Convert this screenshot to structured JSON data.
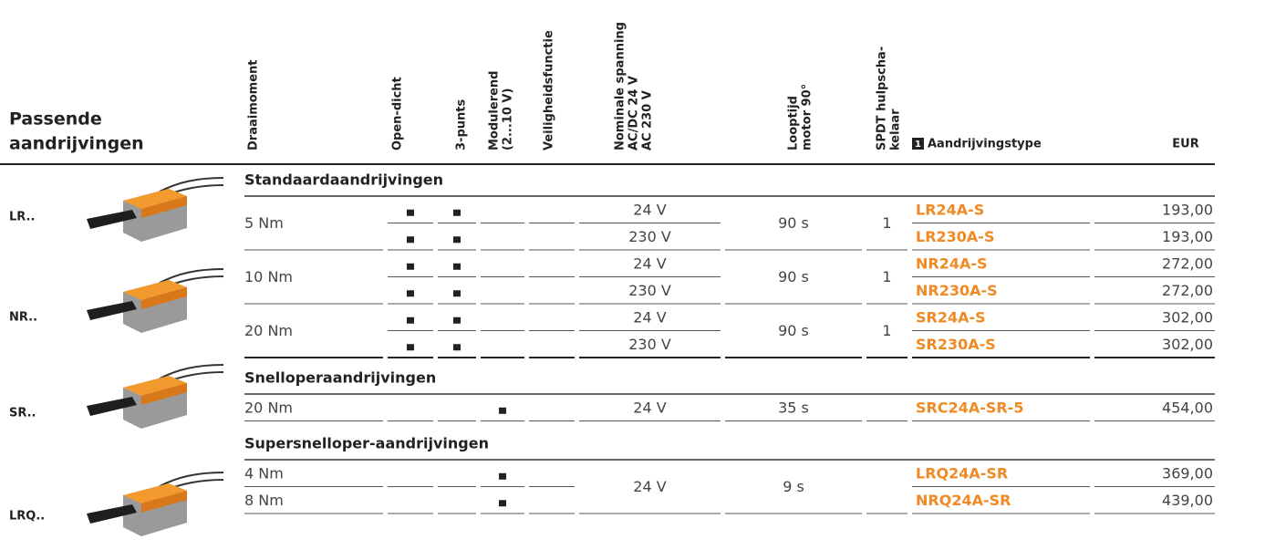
{
  "header": {
    "title": [
      "Passende",
      "aandrijvingen"
    ],
    "columns": [
      [
        "Draaimoment"
      ],
      [
        "Open-dicht"
      ],
      [
        "3-punts"
      ],
      [
        "Modulerend",
        "(2...10 V)"
      ],
      [
        "Veiligheidsfunctie"
      ],
      [
        "Nominale spanning",
        "AC/DC 24 V",
        "AC 230 V"
      ],
      [
        "Looptijd",
        "motor 90°"
      ],
      [
        "SPDT hulpscha-",
        "kelaar"
      ]
    ],
    "type_note": "1",
    "type_header": "Aandrijvingstype",
    "price_header": "EUR"
  },
  "models": [
    "LR..",
    "NR..",
    "SR..",
    "LRQ.."
  ],
  "groups": [
    {
      "title": "Standaardaandrijvingen",
      "rows": [
        {
          "torque": "5 Nm",
          "voltage": "24 V",
          "runtime": "90 s",
          "switch": "1",
          "type": "LR24A-S",
          "price": "193,00"
        },
        {
          "voltage": "230 V",
          "type": "LR230A-S",
          "price": "193,00"
        },
        {
          "torque": "10 Nm",
          "voltage": "24 V",
          "runtime": "90 s",
          "switch": "1",
          "type": "NR24A-S",
          "price": "272,00"
        },
        {
          "voltage": "230 V",
          "type": "NR230A-S",
          "price": "272,00"
        },
        {
          "torque": "20 Nm",
          "voltage": "24 V",
          "runtime": "90 s",
          "switch": "1",
          "type": "SR24A-S",
          "price": "302,00"
        },
        {
          "voltage": "230 V",
          "type": "SR230A-S",
          "price": "302,00"
        }
      ]
    },
    {
      "title": "Snelloperaandrijvingen",
      "rows": [
        {
          "torque": "20 Nm",
          "voltage": "24 V",
          "runtime": "35 s",
          "type": "SRC24A-SR-5",
          "price": "454,00"
        }
      ]
    },
    {
      "title": "Supersnelloper-aandrijvingen",
      "rows": [
        {
          "torque": "4 Nm",
          "voltage": "24 V",
          "runtime": "9 s",
          "type": "LRQ24A-SR",
          "price": "369,00"
        },
        {
          "torque": "8 Nm",
          "type": "NRQ24A-SR",
          "price": "439,00"
        }
      ]
    }
  ]
}
